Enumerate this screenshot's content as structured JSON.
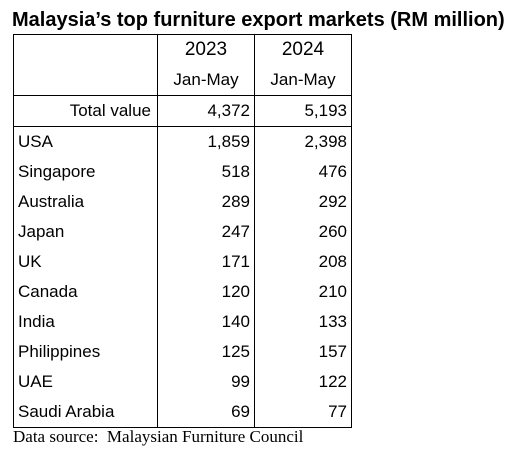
{
  "title": "Malaysia’s top furniture export markets (RM million)",
  "columns": {
    "year_a": "2023",
    "year_b": "2024",
    "period_a": "Jan-May",
    "period_b": "Jan-May"
  },
  "total": {
    "label": "Total value",
    "v2023": "4,372",
    "v2024": "5,193"
  },
  "rows": [
    {
      "country": "USA",
      "v2023": "1,859",
      "v2024": "2,398"
    },
    {
      "country": "Singapore",
      "v2023": "518",
      "v2024": "476"
    },
    {
      "country": "Australia",
      "v2023": "289",
      "v2024": "292"
    },
    {
      "country": "Japan",
      "v2023": "247",
      "v2024": "260"
    },
    {
      "country": "UK",
      "v2023": "171",
      "v2024": "208"
    },
    {
      "country": "Canada",
      "v2023": "120",
      "v2024": "210"
    },
    {
      "country": "India",
      "v2023": "140",
      "v2024": "133"
    },
    {
      "country": "Philippines",
      "v2023": "125",
      "v2024": "157"
    },
    {
      "country": "UAE",
      "v2023": "99",
      "v2024": "122"
    },
    {
      "country": "Saudi Arabia",
      "v2023": "69",
      "v2024": "77"
    }
  ],
  "source": "Data source:  Malaysian Furniture Council"
}
